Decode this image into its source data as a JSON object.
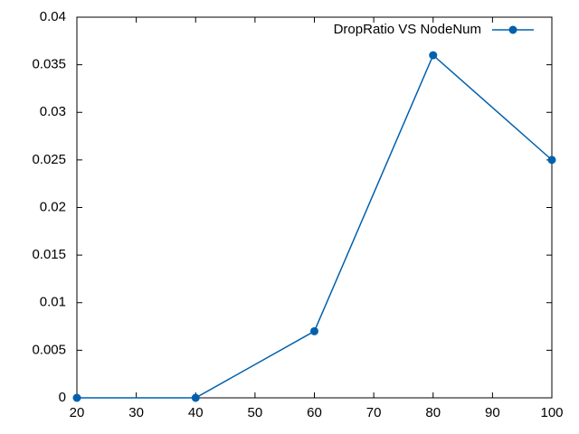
{
  "chart_data": {
    "type": "line",
    "title": "",
    "xlabel": "",
    "ylabel": "",
    "xlim": [
      20,
      100
    ],
    "ylim": [
      0,
      0.04
    ],
    "x_ticks": [
      20,
      30,
      40,
      50,
      60,
      70,
      80,
      90,
      100
    ],
    "x_tick_labels": [
      "20",
      "30",
      "40",
      "50",
      "60",
      "70",
      "80",
      "90",
      "100"
    ],
    "y_ticks": [
      0,
      0.005,
      0.01,
      0.015,
      0.02,
      0.025,
      0.03,
      0.035,
      0.04
    ],
    "y_tick_labels": [
      "0",
      "0.005",
      "0.01",
      "0.015",
      "0.02",
      "0.025",
      "0.03",
      "0.035",
      "0.04"
    ],
    "grid": false,
    "legend_position": "top-right",
    "series": [
      {
        "name": "DropRatio VS NodeNum",
        "color": "#0060ad",
        "marker": "circle",
        "x": [
          20,
          40,
          60,
          80,
          100
        ],
        "y": [
          0,
          0,
          0.007,
          0.036,
          0.025
        ]
      }
    ]
  }
}
